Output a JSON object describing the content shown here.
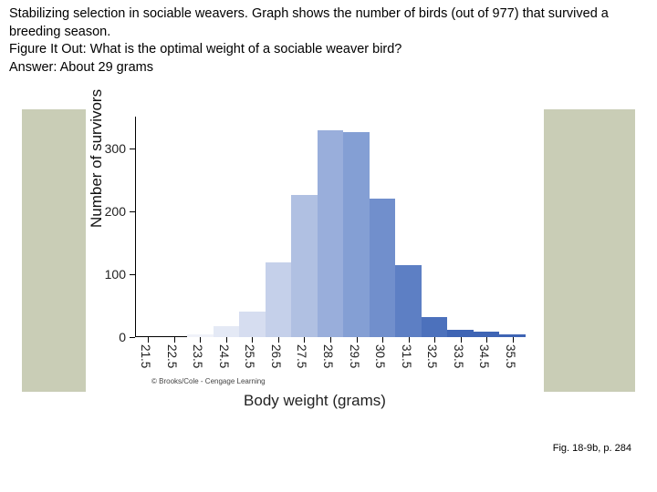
{
  "header": {
    "line1": "Stabilizing selection in sociable weavers. Graph shows the number of birds (out of 977) that survived a breeding season.",
    "line2": "Figure It Out: What is the optimal weight of a sociable weaver bird?",
    "line3": "Answer: About 29 grams"
  },
  "chart": {
    "type": "bar",
    "ylabel": "Number of survivors",
    "xlabel": "Body weight (grams)",
    "ylim_max": 350,
    "yticks": [
      0,
      100,
      200,
      300
    ],
    "categories": [
      "21.5",
      "22.5",
      "23.5",
      "24.5",
      "25.5",
      "26.5",
      "27.5",
      "28.5",
      "29.5",
      "30.5",
      "31.5",
      "32.5",
      "33.5",
      "34.5",
      "35.5"
    ],
    "values": [
      0,
      0,
      5,
      18,
      40,
      118,
      225,
      328,
      326,
      220,
      115,
      32,
      12,
      8,
      5
    ],
    "bar_colors": [
      "#ffffff",
      "#ffffff",
      "#f0f2f9",
      "#e4e9f5",
      "#d6ddf0",
      "#c5d0ea",
      "#b0c0e2",
      "#99aedb",
      "#849fd4",
      "#718fcc",
      "#5d7fc4",
      "#4c71bc",
      "#3e64b4",
      "#3e64b4",
      "#3e64b4"
    ],
    "axis_color": "#000000",
    "label_fontsize": 17,
    "tick_fontsize": 14,
    "side_band_color": "#c9cdb6",
    "background": "#ffffff",
    "bar_gap_ratio": 0.0
  },
  "footer": {
    "copyright": "© Brooks/Cole - Cengage Learning",
    "figref": "Fig. 18-9b, p. 284"
  }
}
